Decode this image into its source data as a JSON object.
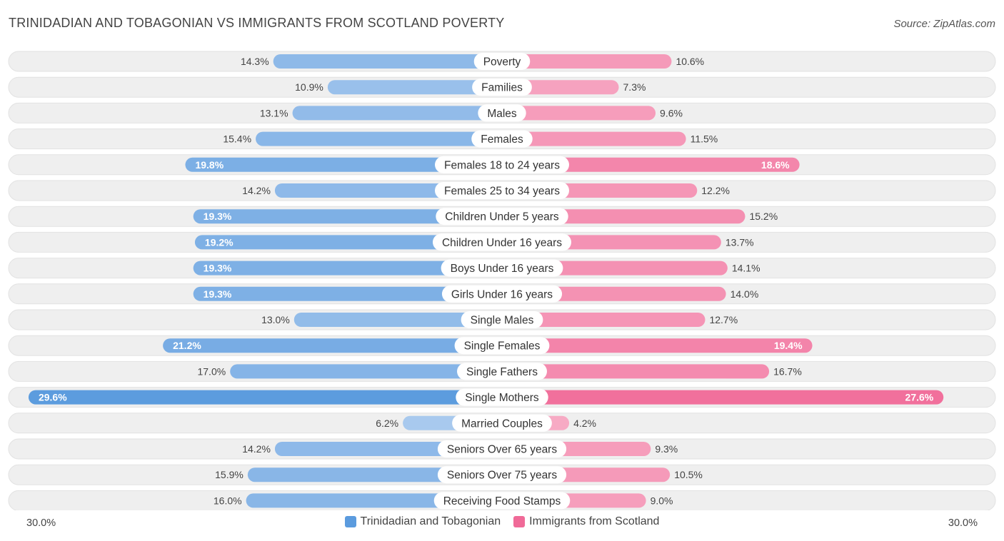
{
  "title": "TRINIDADIAN AND TOBAGONIAN VS IMMIGRANTS FROM SCOTLAND POVERTY",
  "source": "Source: ZipAtlas.com",
  "colors": {
    "left_strong": "#5b9bde",
    "left_light": "#a9c9ee",
    "right_strong": "#f06a98",
    "right_light": "#f7aac4",
    "row_bg": "#efefef"
  },
  "chart_data": {
    "type": "bar",
    "orientation": "diverging-horizontal",
    "xlim": [
      -30,
      30
    ],
    "axis_min_label": "30.0%",
    "axis_max_label": "30.0%",
    "categories": [
      "Poverty",
      "Families",
      "Males",
      "Females",
      "Females 18 to 24 years",
      "Females 25 to 34 years",
      "Children Under 5 years",
      "Children Under 16 years",
      "Boys Under 16 years",
      "Girls Under 16 years",
      "Single Males",
      "Single Females",
      "Single Fathers",
      "Single Mothers",
      "Married Couples",
      "Seniors Over 65 years",
      "Seniors Over 75 years",
      "Receiving Food Stamps"
    ],
    "series": [
      {
        "name": "Trinidadian and Tobagonian",
        "values": [
          14.3,
          10.9,
          13.1,
          15.4,
          19.8,
          14.2,
          19.3,
          19.2,
          19.3,
          19.3,
          13.0,
          21.2,
          17.0,
          29.6,
          6.2,
          14.2,
          15.9,
          16.0
        ],
        "labels": [
          "14.3%",
          "10.9%",
          "13.1%",
          "15.4%",
          "19.8%",
          "14.2%",
          "19.3%",
          "19.2%",
          "19.3%",
          "19.3%",
          "13.0%",
          "21.2%",
          "17.0%",
          "29.6%",
          "6.2%",
          "14.2%",
          "15.9%",
          "16.0%"
        ]
      },
      {
        "name": "Immigrants from Scotland",
        "values": [
          10.6,
          7.3,
          9.6,
          11.5,
          18.6,
          12.2,
          15.2,
          13.7,
          14.1,
          14.0,
          12.7,
          19.4,
          16.7,
          27.6,
          4.2,
          9.3,
          10.5,
          9.0
        ],
        "labels": [
          "10.6%",
          "7.3%",
          "9.6%",
          "11.5%",
          "18.6%",
          "12.2%",
          "15.2%",
          "13.7%",
          "14.1%",
          "14.0%",
          "12.7%",
          "19.4%",
          "16.7%",
          "27.6%",
          "4.2%",
          "9.3%",
          "10.5%",
          "9.0%"
        ]
      }
    ],
    "legend": [
      "Trinidadian and Tobagonian",
      "Immigrants from Scotland"
    ],
    "legend_position": "bottom-center"
  }
}
